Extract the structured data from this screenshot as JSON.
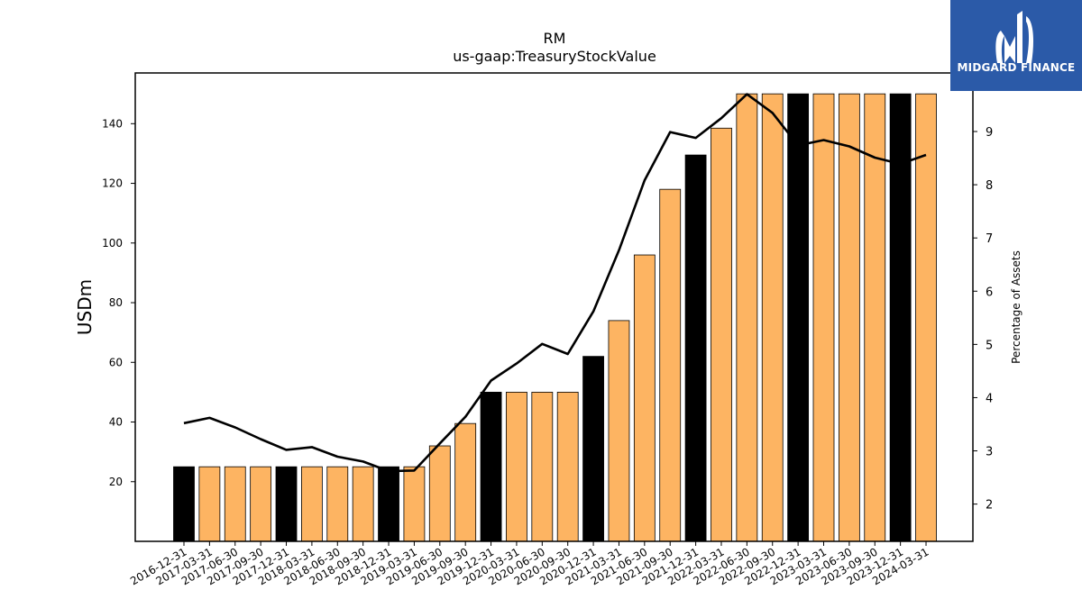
{
  "chart_data": {
    "type": "bar",
    "title": "RM",
    "subtitle": "us-gaap:TreasuryStockValue",
    "ylabel": "USDm",
    "y2label": "Percentage of Assets",
    "ylim": [
      0,
      157
    ],
    "y2lim": [
      1.3,
      10.1
    ],
    "yticks": [
      20,
      40,
      60,
      80,
      100,
      120,
      140
    ],
    "y2ticks": [
      2,
      3,
      4,
      5,
      6,
      7,
      8,
      9
    ],
    "categories": [
      "2016-12-31",
      "2017-03-31",
      "2017-06-30",
      "2017-09-30",
      "2017-12-31",
      "2018-03-31",
      "2018-06-30",
      "2018-09-30",
      "2018-12-31",
      "2019-03-31",
      "2019-06-30",
      "2019-09-30",
      "2019-12-31",
      "2020-03-31",
      "2020-06-30",
      "2020-09-30",
      "2020-12-31",
      "2021-03-31",
      "2021-06-30",
      "2021-09-30",
      "2021-12-31",
      "2022-03-31",
      "2022-06-30",
      "2022-09-30",
      "2022-12-31",
      "2023-03-31",
      "2023-06-30",
      "2023-09-30",
      "2023-12-31",
      "2024-03-31"
    ],
    "series": [
      {
        "type": "bar",
        "values": [
          25,
          25,
          25,
          25,
          25,
          25,
          25,
          25,
          25,
          25,
          32,
          39.5,
          50,
          50,
          50,
          50,
          62,
          74,
          96,
          118,
          129.5,
          138.5,
          150,
          150,
          150,
          150,
          150,
          150,
          150,
          150
        ],
        "colors": [
          "#000000",
          "#fdb462",
          "#fdb462",
          "#fdb462",
          "#000000",
          "#fdb462",
          "#fdb462",
          "#fdb462",
          "#000000",
          "#fdb462",
          "#fdb462",
          "#fdb462",
          "#000000",
          "#fdb462",
          "#fdb462",
          "#fdb462",
          "#000000",
          "#fdb462",
          "#fdb462",
          "#fdb462",
          "#000000",
          "#fdb462",
          "#fdb462",
          "#fdb462",
          "#000000",
          "#fdb462",
          "#fdb462",
          "#fdb462",
          "#000000",
          "#fdb462"
        ]
      },
      {
        "type": "line",
        "axis": "right",
        "color": "#000000",
        "values": [
          3.52,
          3.62,
          3.44,
          3.22,
          3.02,
          3.07,
          2.89,
          2.8,
          2.62,
          2.63,
          3.14,
          3.64,
          4.32,
          4.64,
          5.01,
          4.82,
          5.62,
          6.77,
          8.08,
          8.99,
          8.88,
          9.25,
          9.7,
          9.35,
          8.74,
          8.84,
          8.72,
          8.51,
          8.39,
          8.56
        ]
      }
    ]
  },
  "logo": {
    "text": "MIDGARD FINANCE",
    "color": "#2b5aa8"
  }
}
